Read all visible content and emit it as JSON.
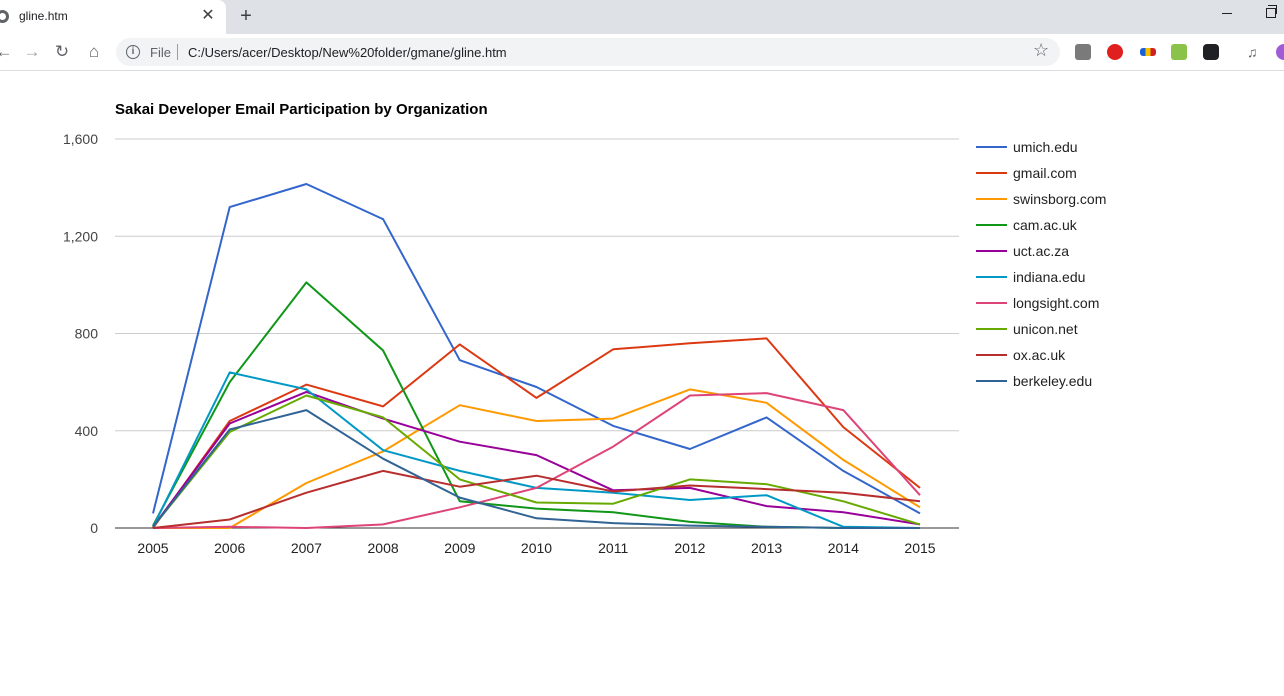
{
  "browser": {
    "tab_title": "gline.htm",
    "tab_close_glyph": "✕",
    "new_tab_glyph": "+",
    "file_label": "File",
    "url": "C:/Users/acer/Desktop/New%20folder/gmane/gline.htm",
    "icons": [
      "back-icon",
      "forward-icon",
      "reload-icon",
      "home-icon",
      "info-icon",
      "star-icon",
      "media-icon",
      "minimize-icon",
      "restore-icon"
    ]
  },
  "chart_data": {
    "type": "line",
    "title": "Sakai Developer Email Participation by Organization",
    "x": [
      "2005",
      "2006",
      "2007",
      "2008",
      "2009",
      "2010",
      "2011",
      "2012",
      "2013",
      "2014",
      "2015"
    ],
    "ylim": [
      0,
      1600
    ],
    "yticks": [
      "0",
      "400",
      "800",
      "1,200",
      "1,600"
    ],
    "ytick_values": [
      0,
      400,
      800,
      1200,
      1600
    ],
    "grid": true,
    "legend_position": "right",
    "series": [
      {
        "name": "umich.edu",
        "color": "#3366cc",
        "values": [
          60,
          1320,
          1415,
          1270,
          690,
          580,
          420,
          325,
          455,
          235,
          60
        ]
      },
      {
        "name": "gmail.com",
        "color": "#dc3912",
        "values": [
          0,
          440,
          590,
          500,
          755,
          535,
          735,
          760,
          780,
          415,
          165
        ]
      },
      {
        "name": "swinsborg.com",
        "color": "#ff9900",
        "values": [
          0,
          0,
          185,
          315,
          505,
          440,
          450,
          570,
          515,
          280,
          85
        ]
      },
      {
        "name": "cam.ac.uk",
        "color": "#109618",
        "values": [
          10,
          600,
          1010,
          730,
          110,
          80,
          65,
          25,
          5,
          0,
          0
        ]
      },
      {
        "name": "uct.ac.za",
        "color": "#990099",
        "values": [
          5,
          430,
          560,
          450,
          355,
          300,
          155,
          165,
          90,
          65,
          15
        ]
      },
      {
        "name": "indiana.edu",
        "color": "#0099c6",
        "values": [
          5,
          640,
          570,
          320,
          235,
          165,
          145,
          115,
          135,
          5,
          0
        ]
      },
      {
        "name": "longsight.com",
        "color": "#dd4477",
        "values": [
          0,
          5,
          0,
          15,
          85,
          165,
          335,
          545,
          555,
          485,
          135
        ]
      },
      {
        "name": "unicon.net",
        "color": "#66aa00",
        "values": [
          5,
          395,
          545,
          455,
          200,
          105,
          100,
          200,
          180,
          110,
          15
        ]
      },
      {
        "name": "ox.ac.uk",
        "color": "#b82e2e",
        "values": [
          0,
          35,
          145,
          235,
          170,
          215,
          150,
          175,
          160,
          145,
          110
        ]
      },
      {
        "name": "berkeley.edu",
        "color": "#316395",
        "values": [
          5,
          405,
          485,
          285,
          125,
          40,
          20,
          10,
          5,
          0,
          0
        ]
      }
    ]
  }
}
